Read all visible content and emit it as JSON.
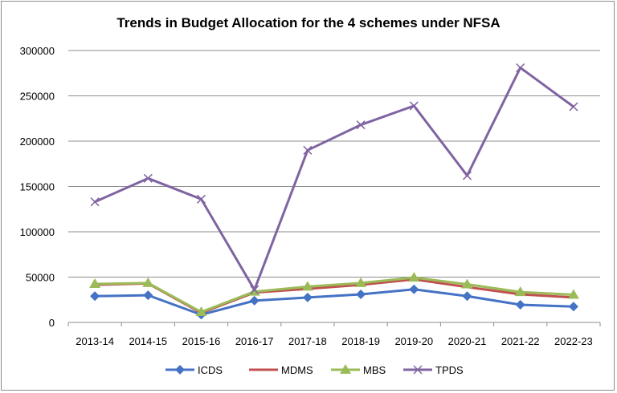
{
  "chart_data": {
    "type": "line",
    "title": "Trends in Budget Allocation for the 4 schemes under NFSA",
    "xlabel": "",
    "ylabel": "",
    "categories": [
      "2013-14",
      "2014-15",
      "2015-16",
      "2016-17",
      "2017-18",
      "2018-19",
      "2019-20",
      "2020-21",
      "2021-22",
      "2022-23"
    ],
    "ylim": [
      0,
      300000
    ],
    "yticks": [
      0,
      50000,
      100000,
      150000,
      200000,
      250000,
      300000
    ],
    "ytick_labels": [
      "0",
      "50000",
      "100000",
      "150000",
      "200000",
      "250000",
      "300000"
    ],
    "grid": true,
    "legend_position": "bottom",
    "series": [
      {
        "name": "ICDS",
        "color": "#4472c4",
        "marker": "diamond",
        "values": [
          29000,
          30000,
          8500,
          24000,
          27500,
          31000,
          36500,
          29000,
          19500,
          17500
        ]
      },
      {
        "name": "MDMS",
        "color": "#c0504d",
        "marker": "none",
        "values": [
          41500,
          43000,
          10500,
          33000,
          37000,
          41500,
          47500,
          39000,
          31000,
          27500
        ]
      },
      {
        "name": "MBS",
        "color": "#9bbb59",
        "marker": "triangle",
        "values": [
          42500,
          43500,
          11500,
          34000,
          39500,
          43500,
          49500,
          42000,
          33500,
          30500
        ]
      },
      {
        "name": "TPDS",
        "color": "#8064a2",
        "marker": "x",
        "values": [
          133000,
          159000,
          136000,
          36000,
          190000,
          218000,
          239000,
          162000,
          281000,
          238000
        ]
      }
    ]
  }
}
